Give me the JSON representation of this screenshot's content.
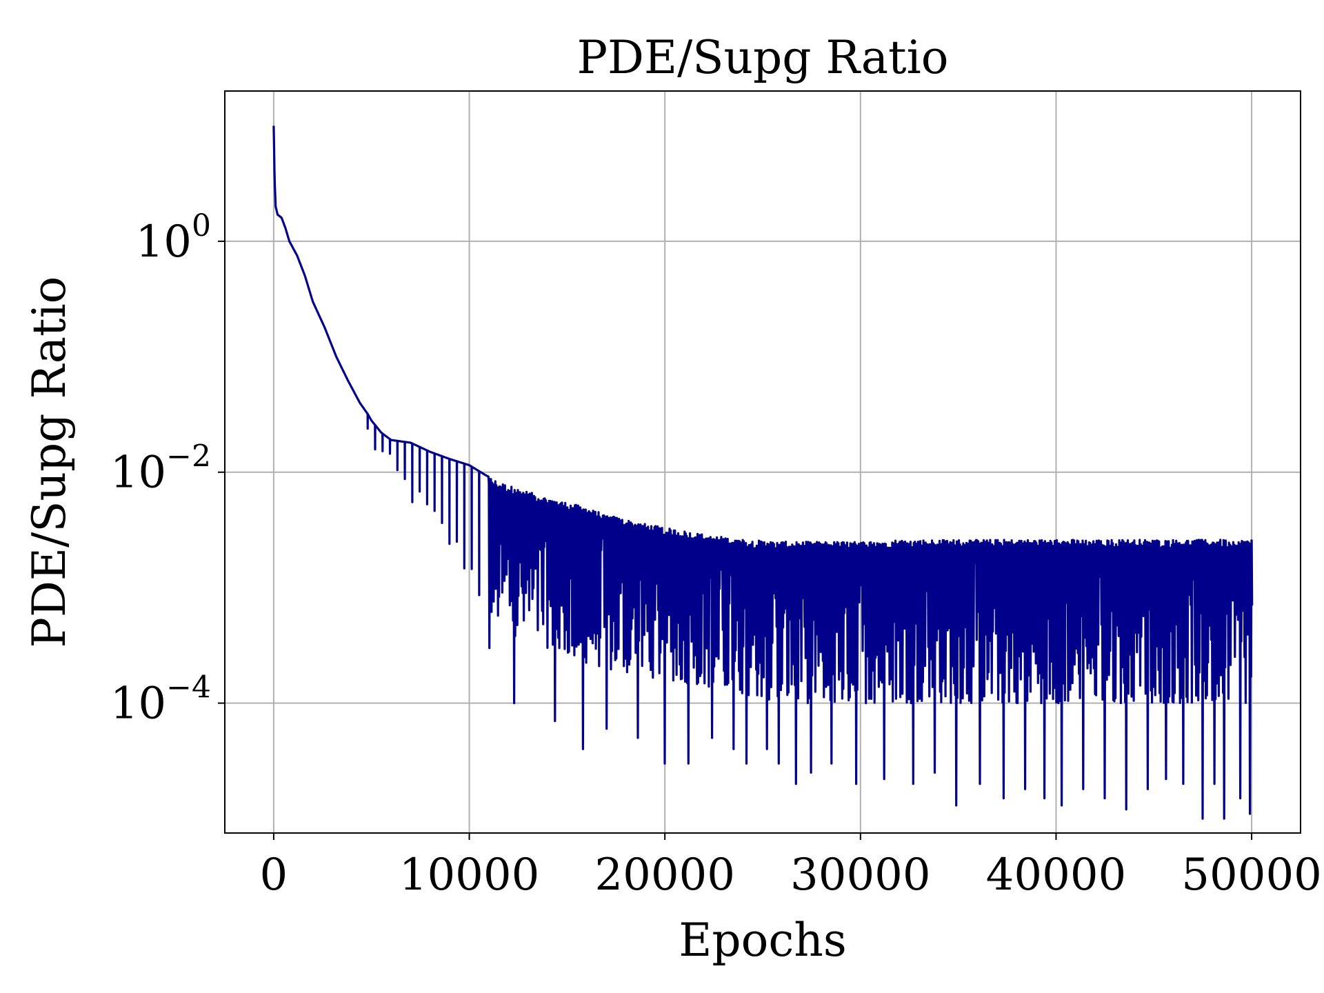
{
  "chart_data": {
    "type": "line",
    "title": "PDE/Supg Ratio",
    "xlabel": "Epochs",
    "ylabel": "PDE/Supg Ratio",
    "y_scale": "log",
    "xlim": [
      -2500,
      52500
    ],
    "ylim": [
      7.5e-06,
      20
    ],
    "x_ticks": [
      0,
      10000,
      20000,
      30000,
      40000,
      50000
    ],
    "x_tick_labels": [
      "0",
      "10000",
      "20000",
      "30000",
      "40000",
      "50000"
    ],
    "y_ticks": [
      0.0001,
      0.01,
      1
    ],
    "y_tick_labels": [
      {
        "base": "10",
        "exp": "−4"
      },
      {
        "base": "10",
        "exp": "−2"
      },
      {
        "base": "10",
        "exp": "0"
      }
    ],
    "grid": true,
    "legend": "none",
    "line_color": "#00008b",
    "series": [
      {
        "envelope_upper": {
          "x": [
            0,
            50,
            100,
            200,
            400,
            600,
            800,
            1200,
            1600,
            2000,
            2600,
            3200,
            3800,
            4400,
            4800,
            5000,
            5500,
            6000,
            7000,
            8000,
            9000,
            10000,
            10800,
            11500,
            12500,
            14000,
            15500,
            17000,
            18500,
            20000,
            22000,
            24000,
            26000,
            28000,
            30000,
            32000,
            34000,
            36000,
            38000,
            40000,
            42000,
            44000,
            46000,
            48000,
            50000
          ],
          "y": [
            10,
            3.3,
            2.0,
            1.7,
            1.6,
            1.3,
            1.0,
            0.75,
            0.5,
            0.3,
            0.18,
            0.1,
            0.062,
            0.04,
            0.032,
            0.028,
            0.022,
            0.019,
            0.018,
            0.015,
            0.013,
            0.0115,
            0.0095,
            0.0082,
            0.0072,
            0.006,
            0.0052,
            0.0043,
            0.0037,
            0.0033,
            0.0029,
            0.0026,
            0.0025,
            0.0025,
            0.0025,
            0.0026,
            0.0026,
            0.0026,
            0.0026,
            0.0026,
            0.0026,
            0.0026,
            0.0026,
            0.0026,
            0.0026
          ]
        },
        "envelope_lower": {
          "x": [
            4800,
            6000,
            8000,
            10000,
            11000,
            12000,
            14000,
            16000,
            18000,
            20000,
            22000,
            24000,
            26000,
            28000,
            30000,
            35000,
            40000,
            45000,
            50000
          ],
          "y": [
            0.02,
            0.01,
            0.004,
            0.0014,
            0.0006,
            0.0004,
            0.0003,
            0.00022,
            0.00018,
            0.00016,
            0.00014,
            0.00012,
            0.0001,
            0.0001,
            0.0001,
            0.0001,
            0.0001,
            0.0001,
            0.0001
          ]
        },
        "deep_minima": {
          "x": [
            10000,
            11000,
            12300,
            14400,
            15800,
            17000,
            18600,
            20000,
            21200,
            22400,
            23500,
            24200,
            25200,
            25800,
            26700,
            27500,
            28500,
            29800,
            31200,
            32700,
            33800,
            34900,
            36100,
            37300,
            38400,
            39400,
            40300,
            41400,
            42500,
            43600,
            44700,
            45600,
            46500,
            47500,
            48100,
            48600,
            49400,
            49900
          ],
          "y": [
            0.001,
            0.0003,
            0.0001,
            7e-05,
            4e-05,
            6e-05,
            5e-05,
            3e-05,
            3e-05,
            5e-05,
            4e-05,
            3e-05,
            4e-05,
            3e-05,
            2e-05,
            2.5e-05,
            3e-05,
            2e-05,
            2.2e-05,
            2e-05,
            2.5e-05,
            1.3e-05,
            2e-05,
            1.5e-05,
            1.8e-05,
            1.5e-05,
            1.3e-05,
            1.8e-05,
            1.5e-05,
            1.2e-05,
            1.8e-05,
            2.2e-05,
            2e-05,
            1e-05,
            2e-05,
            1e-05,
            1.5e-05,
            1.1e-05
          ]
        }
      }
    ]
  }
}
